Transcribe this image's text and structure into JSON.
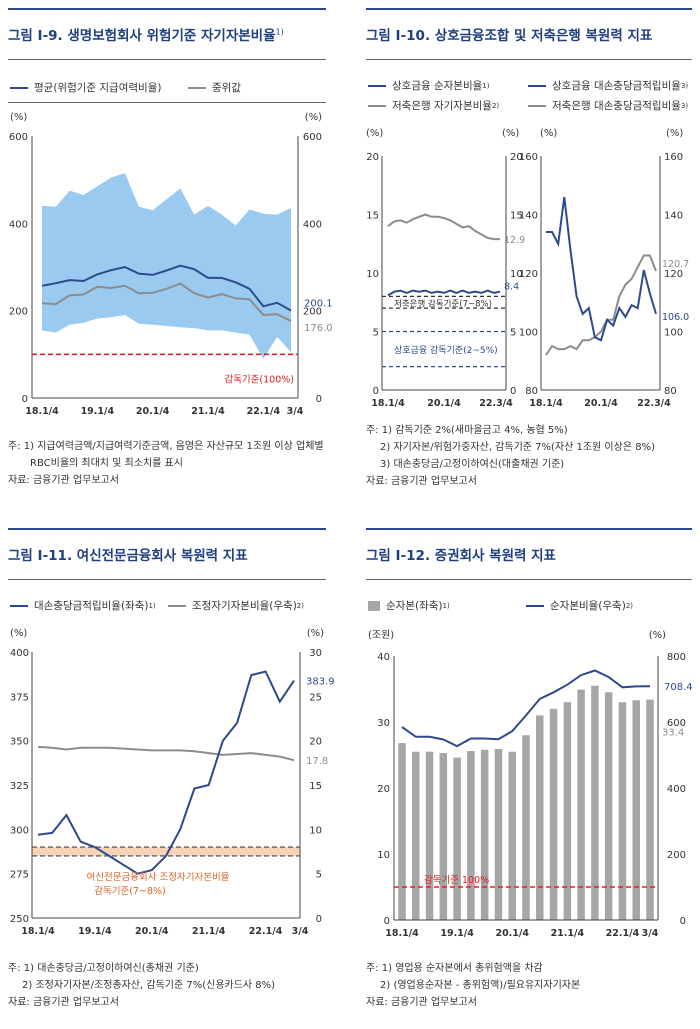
{
  "charts": [
    {
      "id": "c1",
      "title": "그림 Ⅰ-9. 생명보험회사 위험기준 자기자본비율",
      "title_sup": "1)",
      "legend": [
        {
          "name": "평균(위험기준 지급여력비율)",
          "color": "#2e4a8c",
          "kind": "line"
        },
        {
          "name": "중위값",
          "color": "#8c8c8c",
          "kind": "line"
        }
      ],
      "unit_left": "(%)",
      "unit_right": "(%)",
      "x_labels": [
        "18.1/4",
        "19.1/4",
        "20.1/4",
        "21.1/4",
        "22.1/4",
        "3/4"
      ],
      "ref_label": "감독기준(100%)",
      "end_labels": [
        "200.1",
        "176.0"
      ],
      "notes": [
        "주: 1) 지급여력금액/지급여력기준금액, 음영은 자산규모 1조원 이상 업체별",
        "RBC비율의 최대치 및 최소치를 표시",
        "자료: 금융기관 업무보고서"
      ]
    },
    {
      "id": "c2",
      "title": "그림 Ⅰ-10. 상호금융조합 및 저축은행 복원력 지표",
      "legend": [
        {
          "name": "상호금융 순자본비율",
          "sup": "1)",
          "color": "#2e4a8c",
          "kind": "line"
        },
        {
          "name": "상호금융 대손충당금적립비율",
          "sup": "3)",
          "color": "#2e4a8c",
          "kind": "line"
        },
        {
          "name": "저축은행 자기자본비율",
          "sup": "2)",
          "color": "#8c8c8c",
          "kind": "line"
        },
        {
          "name": "저축은행 대손충당금적립비율",
          "sup": "3)",
          "color": "#8c8c8c",
          "kind": "line"
        }
      ],
      "unit": "(%)",
      "x_labels_left": [
        "18.1/4",
        "20.1/4",
        "22.3/4"
      ],
      "x_labels_right": [
        "18.1/4",
        "20.1/4",
        "22.3/4"
      ],
      "ref_label_1": "저축은행 감독기준(7~8%)",
      "ref_label_2": "상호금융 감독기준(2~5%)",
      "end_labels": [
        "12.9",
        "8.4",
        "120.7",
        "106.0"
      ],
      "notes": [
        "주: 1) 감독기준 2%(새마을금고 4%, 농협 5%)",
        "2) 자기자본/위험가중자산, 감독기준 7%(자산 1조원 이상은 8%)",
        "3) 대손충당금/고정이하여신(대출채권 기준)",
        "자료: 금융기관 업무보고서"
      ]
    },
    {
      "id": "c3",
      "title": "그림 Ⅰ-11. 여신전문금융회사 복원력 지표",
      "legend": [
        {
          "name": "대손충당금적립비율(좌축)",
          "sup": "1)",
          "color": "#2e4a8c",
          "kind": "line"
        },
        {
          "name": "조정자기자본비율(우축)",
          "sup": "2)",
          "color": "#8c8c8c",
          "kind": "line"
        }
      ],
      "unit_left": "(%)",
      "unit_right": "(%)",
      "x_labels": [
        "18.1/4",
        "19.1/4",
        "20.1/4",
        "21.1/4",
        "22.1/4",
        "3/4"
      ],
      "ref_label_1": "여신전문금융회사 조정자기자본비율",
      "ref_label_2": "감독기준(7~8%)",
      "end_labels": [
        "383.9",
        "17.8"
      ],
      "notes": [
        "주: 1) 대손충당금/고정이하여신(총채권 기준)",
        "2) 조정자기자본/조정총자산, 감독기준 7%(신용카드사 8%)",
        "자료: 금융기관 업무보고서"
      ]
    },
    {
      "id": "c4",
      "title": "그림 Ⅰ-12. 증권회사 복원력 지표",
      "legend": [
        {
          "name": "순자본(좌축)",
          "sup": "1)",
          "color": "#a6a6a6",
          "kind": "bar"
        },
        {
          "name": "순자본비율(우축)",
          "sup": "2)",
          "color": "#2e4a8c",
          "kind": "line"
        }
      ],
      "unit_left": "(조원)",
      "unit_right": "(%)",
      "x_labels": [
        "18.1/4",
        "19.1/4",
        "20.1/4",
        "21.1/4",
        "22.1/4",
        "3/4"
      ],
      "ref_label": "감독기준 100%",
      "end_labels": [
        "708.4",
        "33.4"
      ],
      "notes": [
        "주: 1) 영업용 순자본에서 총위험액을 차감",
        "2) (영업용순자본 - 총위험액)/필요유지자기자본",
        "자료: 금융기관 업무보고서"
      ]
    }
  ],
  "chart_data": [
    {
      "type": "line",
      "title": "생명보험회사 위험기준 자기자본비율",
      "x": [
        "18.1/4",
        "18.2/4",
        "18.3/4",
        "18.4/4",
        "19.1/4",
        "19.2/4",
        "19.3/4",
        "19.4/4",
        "20.1/4",
        "20.2/4",
        "20.3/4",
        "20.4/4",
        "21.1/4",
        "21.2/4",
        "21.3/4",
        "21.4/4",
        "22.1/4",
        "22.2/4",
        "22.3/4"
      ],
      "ylim": [
        0,
        600
      ],
      "yticks": [
        0,
        200,
        400,
        600
      ],
      "series": [
        {
          "name": "평균(위험기준 지급여력비율)",
          "values": [
            257,
            263,
            270,
            268,
            283,
            293,
            300,
            285,
            282,
            292,
            303,
            295,
            275,
            275,
            265,
            250,
            210,
            218,
            200.1
          ]
        },
        {
          "name": "중위값",
          "values": [
            217,
            215,
            235,
            237,
            255,
            252,
            257,
            240,
            241,
            250,
            262,
            240,
            230,
            238,
            228,
            226,
            190,
            192,
            176.0
          ]
        },
        {
          "name": "최대치",
          "values": [
            440,
            438,
            475,
            465,
            485,
            505,
            515,
            438,
            430,
            455,
            480,
            420,
            440,
            420,
            395,
            432,
            422,
            420,
            435
          ]
        },
        {
          "name": "최소치",
          "values": [
            155,
            150,
            168,
            172,
            182,
            185,
            190,
            170,
            168,
            165,
            162,
            160,
            155,
            155,
            150,
            145,
            90,
            140,
            105
          ]
        }
      ],
      "reference": {
        "name": "감독기준",
        "value": 100
      }
    },
    {
      "type": "line",
      "title": "상호금융 순자본비율 / 저축은행 자기자본비율",
      "x": [
        "18.1/4",
        "18.2/4",
        "18.3/4",
        "18.4/4",
        "19.1/4",
        "19.2/4",
        "19.3/4",
        "19.4/4",
        "20.1/4",
        "20.2/4",
        "20.3/4",
        "20.4/4",
        "21.1/4",
        "21.2/4",
        "21.3/4",
        "21.4/4",
        "22.1/4",
        "22.2/4",
        "22.3/4"
      ],
      "ylim": [
        0,
        20
      ],
      "yticks": [
        0,
        5,
        10,
        15,
        20
      ],
      "series": [
        {
          "name": "상호금융 순자본비율",
          "values": [
            8.1,
            8.4,
            8.5,
            8.3,
            8.5,
            8.4,
            8.5,
            8.3,
            8.4,
            8.3,
            8.5,
            8.3,
            8.5,
            8.3,
            8.4,
            8.3,
            8.5,
            8.3,
            8.4
          ]
        },
        {
          "name": "저축은행 자기자본비율",
          "values": [
            14.0,
            14.4,
            14.5,
            14.3,
            14.6,
            14.8,
            15.0,
            14.8,
            14.8,
            14.7,
            14.5,
            14.2,
            13.9,
            14.0,
            13.6,
            13.3,
            13.0,
            12.9,
            12.9
          ]
        }
      ],
      "bands": [
        {
          "name": "저축은행 감독기준",
          "from": 7,
          "to": 8
        },
        {
          "name": "상호금융 감독기준",
          "from": 2,
          "to": 5
        }
      ]
    },
    {
      "type": "line",
      "title": "대손충당금적립비율 (상호금융 / 저축은행)",
      "x": [
        "18.1/4",
        "18.2/4",
        "18.3/4",
        "18.4/4",
        "19.1/4",
        "19.2/4",
        "19.3/4",
        "19.4/4",
        "20.1/4",
        "20.2/4",
        "20.3/4",
        "20.4/4",
        "21.1/4",
        "21.2/4",
        "21.3/4",
        "21.4/4",
        "22.1/4",
        "22.2/4",
        "22.3/4"
      ],
      "ylim": [
        80,
        160
      ],
      "yticks": [
        80,
        100,
        120,
        140,
        160
      ],
      "series": [
        {
          "name": "상호금융 대손충당금적립비율",
          "values": [
            134,
            134,
            130,
            146,
            128,
            112,
            106,
            108,
            98,
            97,
            104,
            102,
            108,
            105,
            109,
            108,
            121,
            113,
            106.0
          ]
        },
        {
          "name": "저축은행 대손충당금적립비율",
          "values": [
            92,
            95,
            94,
            94,
            95,
            94,
            97,
            97,
            98,
            100,
            104,
            104,
            112,
            116,
            118,
            122,
            126,
            126,
            120.7
          ]
        }
      ]
    },
    {
      "type": "line",
      "title": "여신전문금융회사 복원력 지표",
      "x": [
        "18.1/4",
        "18.2/4",
        "18.3/4",
        "18.4/4",
        "19.1/4",
        "19.2/4",
        "19.3/4",
        "19.4/4",
        "20.1/4",
        "20.2/4",
        "20.3/4",
        "20.4/4",
        "21.1/4",
        "21.2/4",
        "21.3/4",
        "21.4/4",
        "22.1/4",
        "22.2/4",
        "22.3/4"
      ],
      "ylim_left": [
        250,
        400
      ],
      "ylim_right": [
        0,
        30
      ],
      "series": [
        {
          "name": "대손충당금적립비율(좌축)",
          "axis": "left",
          "values": [
            297,
            298,
            308,
            293,
            290,
            285,
            280,
            275,
            277,
            285,
            300,
            323,
            325,
            350,
            360,
            387,
            389,
            372,
            383.9
          ]
        },
        {
          "name": "조정자기자본비율(우축)",
          "axis": "right",
          "values": [
            19.3,
            19.2,
            19.0,
            19.2,
            19.2,
            19.2,
            19.1,
            19.0,
            18.9,
            18.9,
            18.9,
            18.8,
            18.6,
            18.4,
            18.5,
            18.6,
            18.4,
            18.2,
            17.8
          ]
        }
      ],
      "band": {
        "name": "감독기준",
        "from": 7,
        "to": 8,
        "axis": "right"
      }
    },
    {
      "type": "bar",
      "title": "증권회사 복원력 지표",
      "x": [
        "18.1/4",
        "18.2/4",
        "18.3/4",
        "18.4/4",
        "19.1/4",
        "19.2/4",
        "19.3/4",
        "19.4/4",
        "20.1/4",
        "20.2/4",
        "20.3/4",
        "20.4/4",
        "21.1/4",
        "21.2/4",
        "21.3/4",
        "21.4/4",
        "22.1/4",
        "22.2/4",
        "22.3/4"
      ],
      "ylim_left": [
        0,
        40
      ],
      "ylim_right": [
        0,
        800
      ],
      "series": [
        {
          "name": "순자본(좌축)",
          "axis": "left",
          "type": "bar",
          "values": [
            26.8,
            25.5,
            25.5,
            25.3,
            24.6,
            25.6,
            25.8,
            25.9,
            25.5,
            28.0,
            31.0,
            32.0,
            33.0,
            34.9,
            35.5,
            34.5,
            33.0,
            33.3,
            33.4
          ]
        },
        {
          "name": "순자본비율(우축)",
          "axis": "right",
          "type": "line",
          "values": [
            585,
            555,
            555,
            547,
            527,
            550,
            550,
            548,
            572,
            620,
            670,
            690,
            713,
            742,
            756,
            736,
            705,
            708,
            708.4
          ]
        }
      ],
      "reference": {
        "name": "감독기준",
        "value": 100,
        "axis": "right"
      }
    }
  ]
}
